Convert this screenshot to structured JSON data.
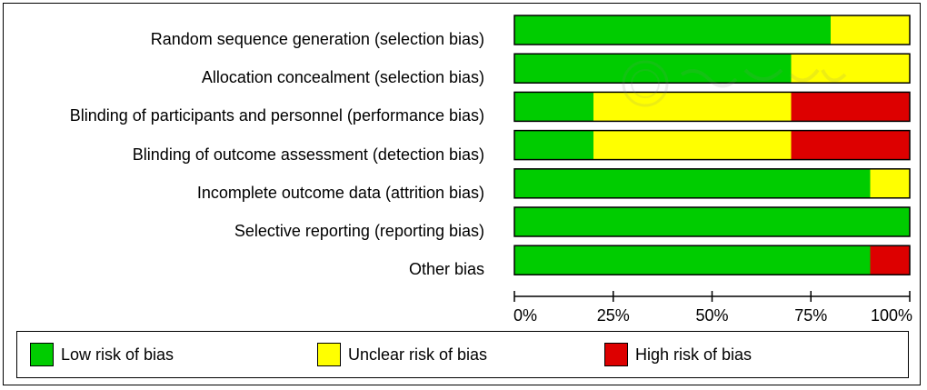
{
  "chart_data": {
    "type": "bar",
    "stacked": true,
    "orientation": "horizontal",
    "categories": [
      "Random sequence generation (selection bias)",
      "Allocation concealment (selection bias)",
      "Blinding of participants and personnel (performance bias)",
      "Blinding of outcome assessment (detection bias)",
      "Incomplete outcome data (attrition bias)",
      "Selective reporting (reporting bias)",
      "Other bias"
    ],
    "series": [
      {
        "name": "Low risk of bias",
        "color": "#00cc00",
        "values": [
          80,
          70,
          20,
          20,
          90,
          100,
          90
        ]
      },
      {
        "name": "Unclear risk of bias",
        "color": "#ffff00",
        "values": [
          20,
          30,
          50,
          50,
          10,
          0,
          0
        ]
      },
      {
        "name": "High risk of bias",
        "color": "#dd0000",
        "values": [
          0,
          0,
          30,
          30,
          0,
          0,
          10
        ]
      }
    ],
    "xlim": [
      0,
      100
    ],
    "xticks": [
      "0%",
      "25%",
      "50%",
      "75%",
      "100%"
    ],
    "legend_position": "bottom",
    "grid": false
  }
}
